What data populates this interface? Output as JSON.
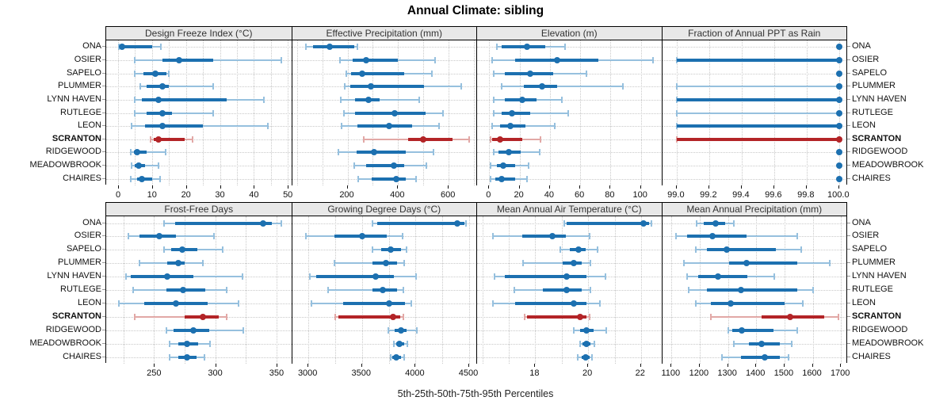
{
  "title": "Annual Climate: sibling",
  "caption": "5th-25th-50th-75th-95th Percentiles",
  "colors": {
    "series": "#1c70b0",
    "series_light": "#96c0de",
    "highlight": "#b32427",
    "highlight_light": "#e2a8a6",
    "strip_bg": "#e8e8e8",
    "grid": "#c9c9c9",
    "panel_border": "#000000"
  },
  "chart_data": {
    "type": "dotplot-percentiles",
    "percentiles": [
      5,
      25,
      50,
      75,
      95
    ],
    "stations": [
      "ONA",
      "OSIER",
      "SAPELO",
      "PLUMMER",
      "LYNN HAVEN",
      "RUTLEGE",
      "LEON",
      "SCRANTON",
      "RIDGEWOOD",
      "MEADOWBROOK",
      "CHAIRES"
    ],
    "highlight_station": "SCRANTON",
    "legend_note": "SCRANTON shown in red, all other stations in blue",
    "panels": [
      {
        "title": "Design Freeze Index (°C)",
        "xlim": [
          -3.5,
          51
        ],
        "ticks": [
          0,
          10,
          20,
          30,
          40,
          50
        ],
        "tick_labels": [
          "0",
          "10",
          "20",
          "30",
          "40",
          "50"
        ],
        "grid": [
          0,
          5,
          10,
          15,
          20,
          25,
          30,
          35,
          40,
          45,
          50
        ],
        "values": [
          [
            0.3,
            0.6,
            1.2,
            10,
            12.5
          ],
          [
            5,
            13,
            18,
            28,
            48
          ],
          [
            5,
            7.5,
            11,
            14.3,
            15
          ],
          [
            6.5,
            8.5,
            13,
            15,
            28
          ],
          [
            5,
            7,
            12,
            32,
            43
          ],
          [
            5,
            8.5,
            13,
            16,
            28
          ],
          [
            4,
            8,
            13,
            25,
            44
          ],
          [
            9.5,
            10.5,
            12,
            19.5,
            22
          ],
          [
            3.7,
            4.7,
            5.7,
            8.5,
            14
          ],
          [
            4,
            5,
            6,
            8,
            12
          ],
          [
            3.7,
            5.5,
            7,
            10,
            12.3
          ]
        ]
      },
      {
        "title": "Effective Precipitation (mm)",
        "xlim": [
          -19,
          712
        ],
        "ticks": [
          200,
          400,
          600
        ],
        "tick_labels": [
          "200",
          "400",
          "600"
        ],
        "grid": [
          0,
          100,
          200,
          300,
          400,
          500,
          600,
          700
        ],
        "values": [
          [
            35,
            65,
            130,
            228,
            238
          ],
          [
            170,
            220,
            275,
            400,
            545
          ],
          [
            195,
            215,
            257,
            424,
            533
          ],
          [
            190,
            210,
            291,
            504,
            650
          ],
          [
            172,
            230,
            282,
            327,
            483
          ],
          [
            187,
            230,
            387,
            509,
            577
          ],
          [
            175,
            240,
            363,
            455,
            562
          ],
          [
            265,
            440,
            500,
            615,
            680
          ],
          [
            163,
            235,
            306,
            430,
            541
          ],
          [
            228,
            275,
            384,
            425,
            512
          ],
          [
            241,
            295,
            394,
            430,
            472
          ]
        ]
      },
      {
        "title": "Elevation (m)",
        "xlim": [
          -8,
          114
        ],
        "ticks": [
          0,
          20,
          40,
          60,
          80,
          100
        ],
        "tick_labels": [
          "0",
          "20",
          "40",
          "60",
          "80",
          "100"
        ],
        "grid": [
          0,
          20,
          40,
          60,
          80,
          100
        ],
        "values": [
          [
            5,
            8,
            25,
            37,
            50
          ],
          [
            2,
            17,
            45,
            72,
            108
          ],
          [
            3,
            10,
            27,
            42,
            64
          ],
          [
            8,
            23,
            35,
            45,
            88
          ],
          [
            3,
            10,
            22,
            31,
            48
          ],
          [
            3,
            8,
            15,
            27,
            52
          ],
          [
            2,
            7,
            14,
            24,
            43
          ],
          [
            1,
            2,
            7,
            22,
            34
          ],
          [
            3,
            6,
            13,
            21,
            33
          ],
          [
            1,
            5,
            9,
            17,
            26
          ],
          [
            1,
            4,
            8,
            17,
            25
          ]
        ]
      },
      {
        "title": "Fraction of Annual PPT as Rain",
        "xlim": [
          98.91,
          100.05
        ],
        "ticks": [
          99.0,
          99.2,
          99.4,
          99.6,
          99.8,
          100.0
        ],
        "tick_labels": [
          "99.0",
          "99.2",
          "99.4",
          "99.6",
          "99.8",
          "100.0"
        ],
        "grid": [
          99.0,
          99.2,
          99.4,
          99.6,
          99.8,
          100.0
        ],
        "values": [
          [
            100,
            100,
            100,
            100,
            100
          ],
          [
            99.0,
            99.0,
            100,
            100,
            100
          ],
          [
            100,
            100,
            100,
            100,
            100
          ],
          [
            99.0,
            100,
            100,
            100,
            100
          ],
          [
            99.0,
            99.0,
            100,
            100,
            100
          ],
          [
            99.0,
            100,
            100,
            100,
            100
          ],
          [
            99.0,
            99.0,
            100,
            100,
            100
          ],
          [
            99.0,
            99.0,
            100,
            100,
            100
          ],
          [
            100,
            100,
            100,
            100,
            100
          ],
          [
            100,
            100,
            100,
            100,
            100
          ],
          [
            100,
            100,
            100,
            100,
            100
          ]
        ]
      },
      {
        "title": "Frost-Free Days",
        "xlim": [
          211,
          362
        ],
        "ticks": [
          250,
          300,
          350
        ],
        "tick_labels": [
          "250",
          "300",
          "350"
        ],
        "grid": [
          225,
          250,
          275,
          300,
          325,
          350
        ],
        "values": [
          [
            258,
            267,
            339,
            346,
            354
          ],
          [
            229,
            238,
            254,
            268,
            299
          ],
          [
            258,
            264,
            273,
            285,
            306
          ],
          [
            238,
            261,
            270,
            275,
            290
          ],
          [
            227,
            231,
            261,
            282,
            322
          ],
          [
            233,
            260,
            274,
            292,
            309
          ],
          [
            221,
            242,
            268,
            294,
            319
          ],
          [
            234,
            275,
            290,
            303,
            309
          ],
          [
            260,
            266,
            282,
            295,
            323
          ],
          [
            263,
            270,
            277,
            286,
            296
          ],
          [
            263,
            270,
            277,
            285,
            291
          ]
        ]
      },
      {
        "title": "Growing Degree Days (°C)",
        "xlim": [
          2847,
          4574
        ],
        "ticks": [
          3000,
          3500,
          4000,
          4500
        ],
        "tick_labels": [
          "3000",
          "3500",
          "4000",
          "4500"
        ],
        "grid": [
          3000,
          3250,
          3500,
          3750,
          4000,
          4250,
          4500
        ],
        "values": [
          [
            3595,
            3645,
            4390,
            4455,
            4470
          ],
          [
            2975,
            3240,
            3500,
            3730,
            3880
          ],
          [
            3595,
            3680,
            3770,
            3865,
            3915
          ],
          [
            3240,
            3600,
            3725,
            3830,
            3895
          ],
          [
            3015,
            3075,
            3625,
            3795,
            4005
          ],
          [
            3180,
            3600,
            3695,
            3830,
            3885
          ],
          [
            3025,
            3325,
            3750,
            3900,
            3960
          ],
          [
            3250,
            3280,
            3790,
            3855,
            3885
          ],
          [
            3745,
            3805,
            3860,
            3915,
            4015
          ],
          [
            3800,
            3820,
            3850,
            3895,
            3920
          ],
          [
            3765,
            3780,
            3820,
            3865,
            3895
          ]
        ]
      },
      {
        "title": "Mean Annual Air Temperature (°C)",
        "xlim": [
          15.8,
          22.8
        ],
        "ticks": [
          18,
          20,
          22
        ],
        "tick_labels": [
          "18",
          "20",
          "22"
        ],
        "grid": [
          16,
          17,
          18,
          19,
          20,
          21,
          22
        ],
        "values": [
          [
            19.1,
            19.2,
            22.1,
            22.3,
            22.4
          ],
          [
            16.4,
            17.5,
            18.65,
            19.15,
            20.05
          ],
          [
            18.95,
            19.3,
            19.65,
            19.9,
            20.35
          ],
          [
            17.55,
            19.05,
            19.45,
            19.75,
            20.1
          ],
          [
            16.45,
            16.85,
            19.2,
            19.95,
            20.65
          ],
          [
            17.2,
            18.3,
            19.2,
            19.75,
            20.1
          ],
          [
            16.4,
            17.25,
            19.45,
            19.95,
            20.45
          ],
          [
            17.6,
            17.7,
            19.7,
            19.95,
            20.05
          ],
          [
            19.45,
            19.7,
            19.95,
            20.2,
            20.7
          ],
          [
            19.7,
            19.8,
            19.95,
            20.1,
            20.25
          ],
          [
            19.6,
            19.75,
            19.9,
            20.05,
            20.15
          ]
        ]
      },
      {
        "title": "Mean Annual Precipitation (mm)",
        "xlim": [
          1067,
          1722
        ],
        "ticks": [
          1100,
          1200,
          1300,
          1400,
          1500,
          1600,
          1700
        ],
        "tick_labels": [
          "1100",
          "1200",
          "1300",
          "1400",
          "1500",
          "1600",
          "1700"
        ],
        "grid": [
          1100,
          1200,
          1300,
          1400,
          1500,
          1600,
          1700
        ],
        "values": [
          [
            1190,
            1215,
            1255,
            1290,
            1320
          ],
          [
            1115,
            1155,
            1245,
            1365,
            1545
          ],
          [
            1185,
            1225,
            1295,
            1470,
            1560
          ],
          [
            1145,
            1305,
            1365,
            1545,
            1660
          ],
          [
            1155,
            1195,
            1265,
            1370,
            1465
          ],
          [
            1160,
            1225,
            1345,
            1545,
            1600
          ],
          [
            1185,
            1240,
            1310,
            1500,
            1565
          ],
          [
            1240,
            1420,
            1520,
            1640,
            1690
          ],
          [
            1300,
            1315,
            1350,
            1460,
            1545
          ],
          [
            1320,
            1375,
            1420,
            1485,
            1525
          ],
          [
            1280,
            1345,
            1430,
            1485,
            1515
          ]
        ]
      }
    ]
  }
}
